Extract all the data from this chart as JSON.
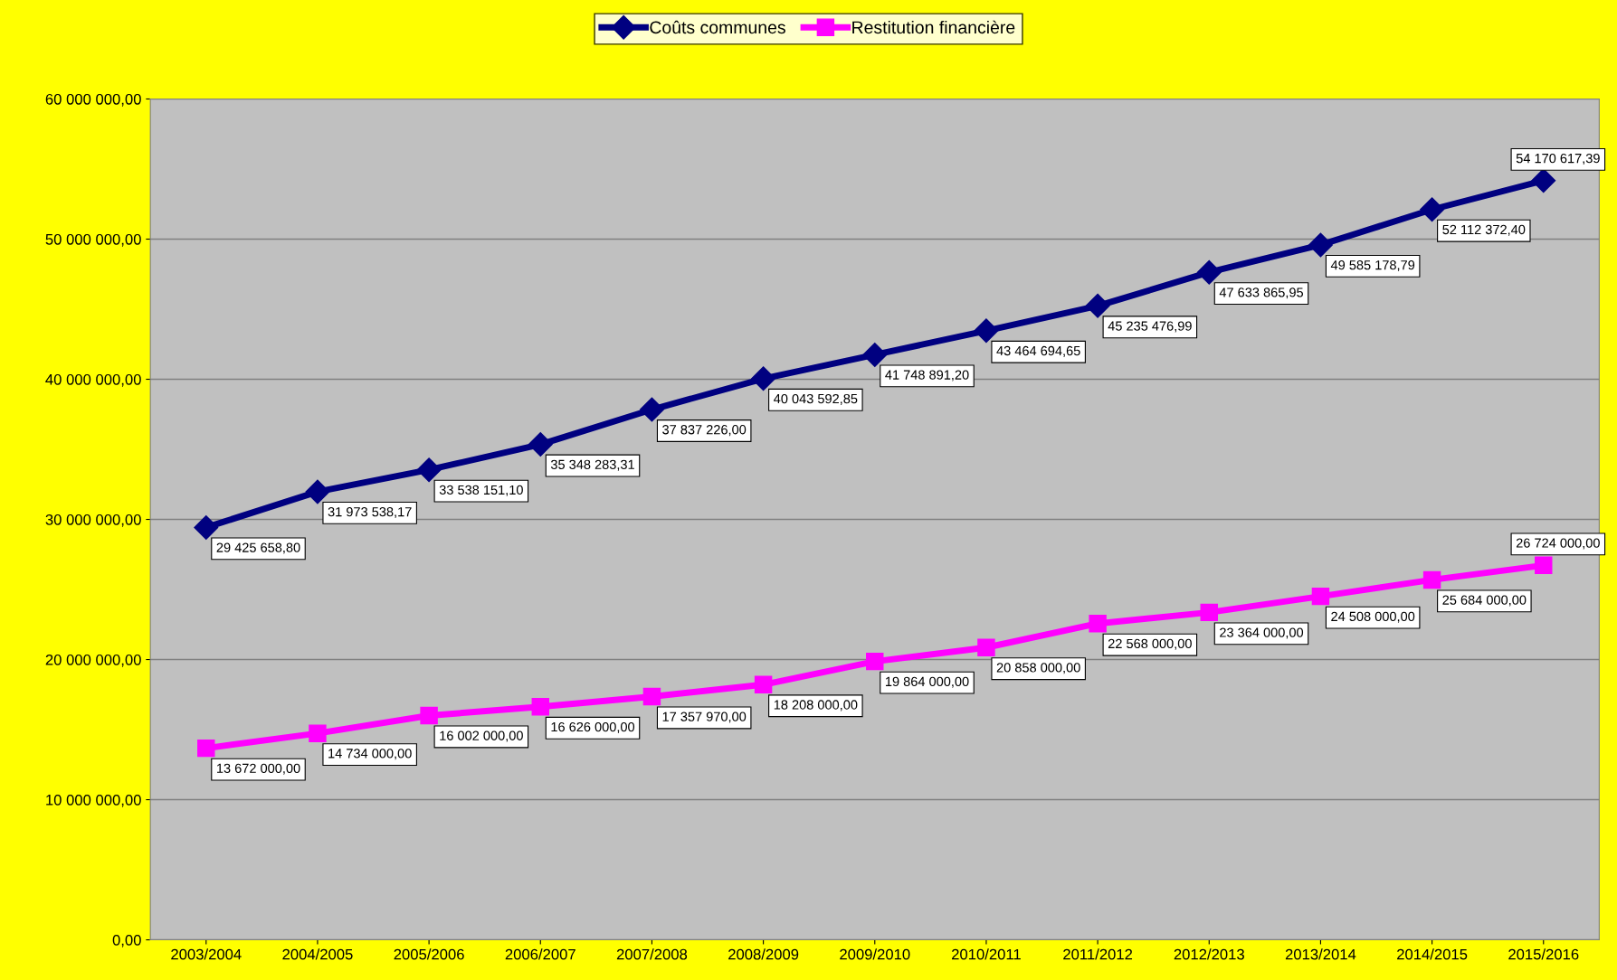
{
  "chart_data": {
    "type": "line",
    "categories": [
      "2003/2004",
      "2004/2005",
      "2005/2006",
      "2006/2007",
      "2007/2008",
      "2008/2009",
      "2009/2010",
      "2010/2011",
      "2011/2012",
      "2012/2013",
      "2013/2014",
      "2014/2015",
      "2015/2016"
    ],
    "series": [
      {
        "name": "Coûts communes",
        "color": "#000080",
        "marker": "diamond",
        "values": [
          29425658.8,
          31973538.17,
          33538151.1,
          35348283.31,
          37837226.0,
          40043592.85,
          41748891.2,
          43464694.65,
          45235476.99,
          47633865.95,
          49585178.79,
          52112372.4,
          54170617.39
        ],
        "value_labels": [
          "29 425 658,80",
          "31 973 538,17",
          "33 538 151,10",
          "35 348 283,31",
          "37 837 226,00",
          "40 043 592,85",
          "41 748 891,20",
          "43 464 694,65",
          "45 235 476,99",
          "47 633 865,95",
          "49 585 178,79",
          "52 112 372,40",
          "54 170 617,39"
        ]
      },
      {
        "name": "Restitution financière",
        "color": "#ff00ff",
        "marker": "square",
        "values": [
          13672000,
          14734000,
          16002000,
          16626000,
          17357970,
          18208000,
          19864000,
          20858000,
          22568000,
          23364000,
          24508000,
          25684000,
          26724000
        ],
        "value_labels": [
          "13 672 000,00",
          "14 734 000,00",
          "16 002 000,00",
          "16 626 000,00",
          "17 357 970,00",
          "18 208 000,00",
          "19 864 000,00",
          "20 858 000,00",
          "22 568 000,00",
          "23 364 000,00",
          "24 508 000,00",
          "25 684 000,00",
          "26 724 000,00"
        ]
      }
    ],
    "ylim": [
      0,
      60000000
    ],
    "yticks": [
      {
        "value": 0,
        "label": "0,00"
      },
      {
        "value": 10000000,
        "label": "10 000 000,00"
      },
      {
        "value": 20000000,
        "label": "20 000 000,00"
      },
      {
        "value": 30000000,
        "label": "30 000 000,00"
      },
      {
        "value": 40000000,
        "label": "40 000 000,00"
      },
      {
        "value": 50000000,
        "label": "50 000 000,00"
      },
      {
        "value": 60000000,
        "label": "60 000 000,00"
      }
    ],
    "grid": "y",
    "legend": "top"
  }
}
